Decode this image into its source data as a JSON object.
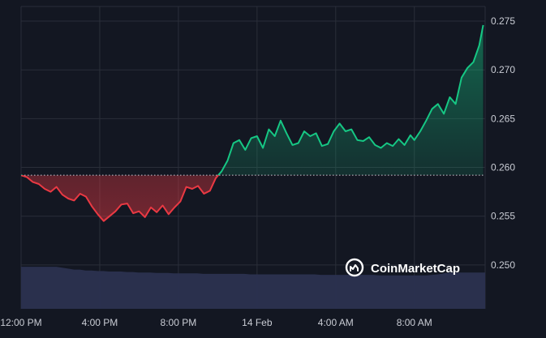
{
  "brand": {
    "name": "CoinMarketCap",
    "logo_icon": "coinmarketcap-logo-icon"
  },
  "colors": {
    "background": "#131722",
    "grid": "#2a2e39",
    "up": "#16c784",
    "down": "#ea3943",
    "baseline": "#c9ccd4",
    "volume": "#2b3150",
    "text": "#c9ccd4"
  },
  "chart_data": {
    "type": "line",
    "title": "",
    "xlabel": "",
    "ylabel": "",
    "baseline": 0.2592,
    "ylim": [
      0.2455,
      0.2765
    ],
    "xlim": [
      0,
      23.6
    ],
    "y_ticks": [
      "0.250",
      "0.255",
      "0.260",
      "0.265",
      "0.270",
      "0.275"
    ],
    "y_tick_values": [
      0.25,
      0.255,
      0.26,
      0.265,
      0.27,
      0.275
    ],
    "x_ticks": [
      "12:00 PM",
      "4:00 PM",
      "8:00 PM",
      "14 Feb",
      "4:00 AM",
      "8:00 AM"
    ],
    "x_tick_values": [
      0,
      4,
      8,
      12,
      16,
      20
    ],
    "grid": true,
    "series": [
      {
        "x": [
          0,
          0.3,
          0.6,
          0.9,
          1.2,
          1.5,
          1.8,
          2.1,
          2.4,
          2.7,
          3.0,
          3.3,
          3.6,
          3.9,
          4.2,
          4.5,
          4.8,
          5.1,
          5.4,
          5.7,
          6.0,
          6.3,
          6.6,
          6.9,
          7.2,
          7.5,
          7.8,
          8.1,
          8.4,
          8.7,
          9.0,
          9.3,
          9.6,
          9.9,
          10.2,
          10.5,
          10.8,
          11.1,
          11.4,
          11.7,
          12.0,
          12.3,
          12.6,
          12.9,
          13.2,
          13.5,
          13.8,
          14.1,
          14.4,
          14.7,
          15.0,
          15.3,
          15.6,
          15.9,
          16.2,
          16.5,
          16.8,
          17.1,
          17.4,
          17.7,
          18.0,
          18.3,
          18.6,
          18.9,
          19.2,
          19.5,
          19.8,
          20.0,
          20.3,
          20.6,
          20.9,
          21.2,
          21.5,
          21.8,
          22.1,
          22.4,
          22.7,
          23.0,
          23.3,
          23.5
        ],
        "y": [
          0.2592,
          0.259,
          0.2585,
          0.2583,
          0.2578,
          0.2575,
          0.258,
          0.2572,
          0.2568,
          0.2566,
          0.2573,
          0.257,
          0.256,
          0.2552,
          0.2545,
          0.255,
          0.2555,
          0.2562,
          0.2563,
          0.2553,
          0.2555,
          0.2549,
          0.2559,
          0.2554,
          0.2561,
          0.2552,
          0.2559,
          0.2565,
          0.258,
          0.2578,
          0.2581,
          0.2573,
          0.2576,
          0.2589,
          0.2596,
          0.2607,
          0.2625,
          0.2628,
          0.2618,
          0.263,
          0.2632,
          0.262,
          0.2639,
          0.2632,
          0.2648,
          0.2635,
          0.2623,
          0.2625,
          0.2637,
          0.2632,
          0.2635,
          0.2622,
          0.2624,
          0.2637,
          0.2645,
          0.2637,
          0.2639,
          0.2628,
          0.2627,
          0.2631,
          0.2623,
          0.262,
          0.2625,
          0.2622,
          0.2629,
          0.2623,
          0.2633,
          0.2628,
          0.2637,
          0.2648,
          0.266,
          0.2665,
          0.2655,
          0.2672,
          0.2665,
          0.2692,
          0.2702,
          0.2708,
          0.2725,
          0.2746
        ]
      }
    ],
    "volume": [
      0.88,
      0.88,
      0.88,
      0.88,
      0.88,
      0.88,
      0.88,
      0.86,
      0.84,
      0.82,
      0.82,
      0.8,
      0.8,
      0.79,
      0.79,
      0.78,
      0.78,
      0.78,
      0.77,
      0.77,
      0.76,
      0.76,
      0.76,
      0.75,
      0.75,
      0.75,
      0.74,
      0.74,
      0.74,
      0.74,
      0.74,
      0.73,
      0.73,
      0.73,
      0.73,
      0.73,
      0.73,
      0.73,
      0.73,
      0.72,
      0.72,
      0.72,
      0.72,
      0.72,
      0.72,
      0.72,
      0.72,
      0.72,
      0.72,
      0.72,
      0.72,
      0.71,
      0.71,
      0.71,
      0.71,
      0.71,
      0.71,
      0.71,
      0.71,
      0.71,
      0.71,
      0.7,
      0.7,
      0.7,
      0.7,
      0.7,
      0.7,
      0.7,
      0.7,
      0.7,
      0.71,
      0.72,
      0.74,
      0.76,
      0.76,
      0.76,
      0.76,
      0.76,
      0.76,
      0.76
    ]
  }
}
